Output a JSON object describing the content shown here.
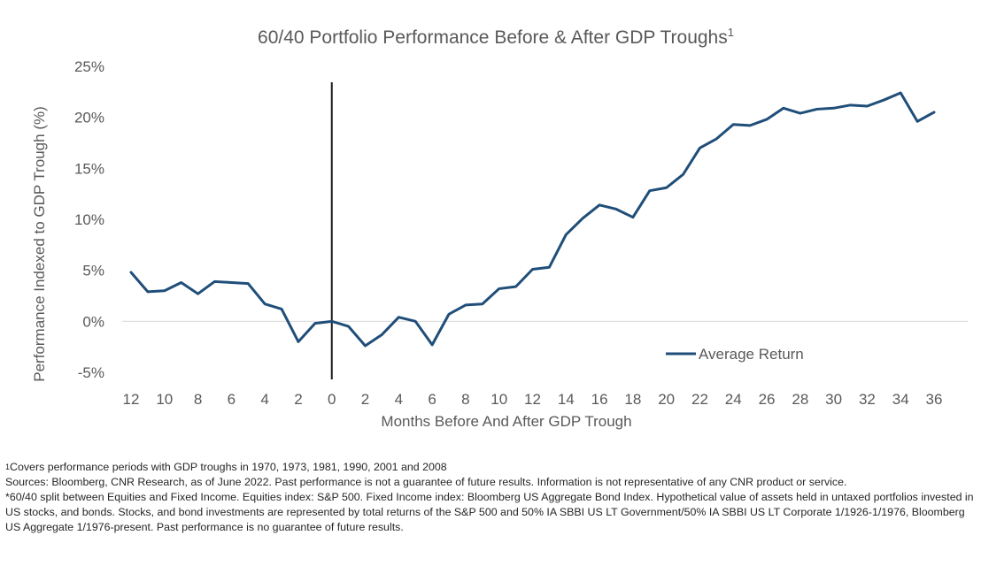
{
  "chart_data": {
    "type": "line",
    "title": "60/40 Portfolio Performance Before & After GDP Troughs",
    "title_superscript": "1",
    "xlabel": "Months Before And After GDP Trough",
    "ylabel": "Performance Indexed to GDP Trough (%)",
    "x_ticks": [
      "12",
      "10",
      "8",
      "6",
      "4",
      "2",
      "0",
      "2",
      "4",
      "6",
      "8",
      "10",
      "12",
      "14",
      "16",
      "18",
      "20",
      "22",
      "24",
      "26",
      "28",
      "30",
      "32",
      "34",
      "36"
    ],
    "y_ticks": [
      "25%",
      "20%",
      "15%",
      "10%",
      "5%",
      "0%",
      "-5%"
    ],
    "ylim": [
      -5,
      25
    ],
    "xlim": [
      -12,
      36
    ],
    "x": [
      -12,
      -11,
      -10,
      -9,
      -8,
      -7,
      -6,
      -5,
      -4,
      -3,
      -2,
      -1,
      0,
      1,
      2,
      3,
      4,
      5,
      6,
      7,
      8,
      9,
      10,
      11,
      12,
      13,
      14,
      15,
      16,
      17,
      18,
      19,
      20,
      21,
      22,
      23,
      24,
      25,
      26,
      27,
      28,
      29,
      30,
      31,
      32,
      33,
      34,
      35,
      36
    ],
    "series": [
      {
        "name": "Average Return",
        "color": "#1f4e79",
        "values": [
          4.8,
          2.9,
          3.0,
          3.8,
          2.7,
          3.9,
          3.8,
          3.7,
          1.7,
          1.2,
          -2.0,
          -0.2,
          0.0,
          -0.5,
          -2.4,
          -1.3,
          0.4,
          0.0,
          -2.3,
          0.7,
          1.6,
          1.7,
          3.2,
          3.4,
          5.1,
          5.3,
          8.5,
          10.1,
          11.4,
          11.0,
          10.2,
          12.8,
          13.1,
          14.4,
          17.0,
          17.9,
          19.3,
          19.2,
          19.8,
          20.9,
          20.4,
          20.8,
          20.9,
          21.2,
          21.1,
          21.7,
          22.4,
          19.6,
          20.5
        ]
      }
    ],
    "reference_line_x": 0,
    "grid": "horizontal-zero-line-only",
    "legend_position": "bottom-right"
  },
  "footnotes": {
    "note1_marker": "1",
    "note1_text": "Covers performance periods with GDP troughs in 1970, 1973, 1981, 1990, 2001 and 2008",
    "sources": "Sources: Bloomberg, CNR Research, as of June 2022. Past performance is not a guarantee of future results. Information is not representative of any CNR product or service.",
    "methodology": "*60/40 split between Equities and Fixed Income. Equities index: S&P 500. Fixed Income index: Bloomberg US Aggregate Bond Index. Hypothetical value of assets held in untaxed portfolios invested in US stocks, and bonds. Stocks, and bond investments are represented by total returns of the S&P 500 and 50% IA SBBI US LT Government/50% IA SBBI US LT Corporate 1/1926-1/1976, Bloomberg US Aggregate 1/1976-present. Past performance is no guarantee of future results."
  }
}
